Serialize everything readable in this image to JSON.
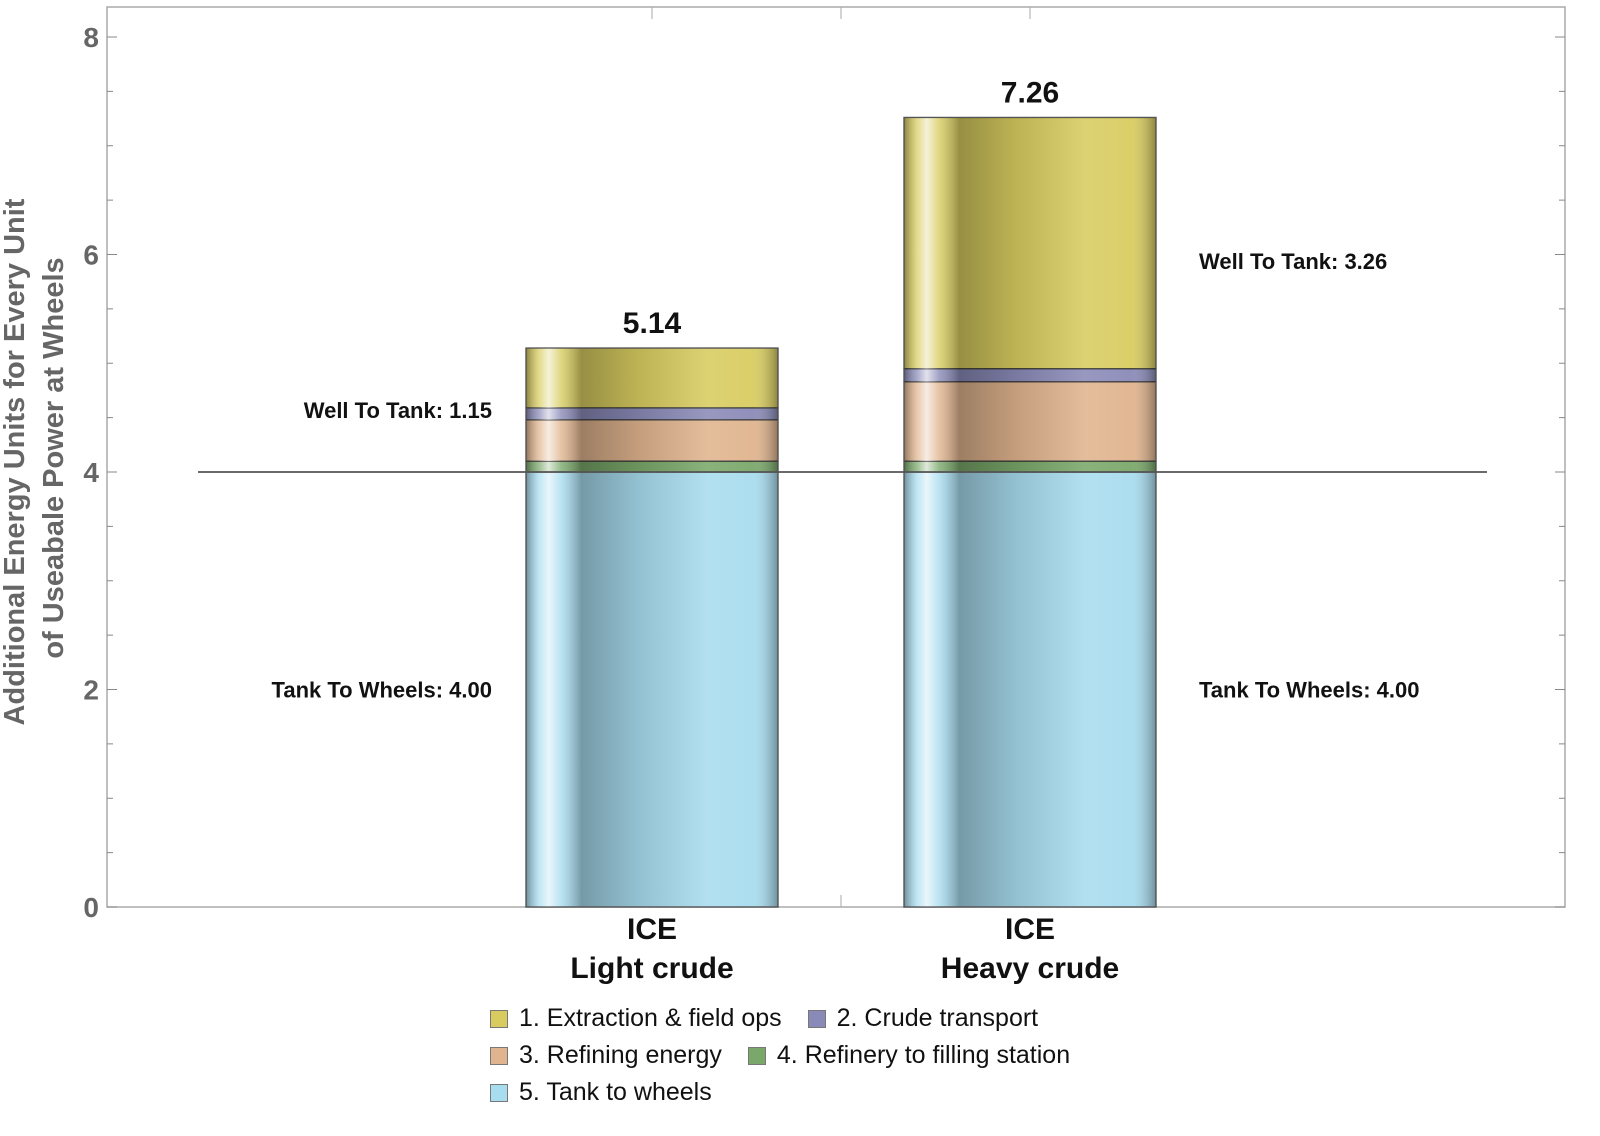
{
  "chart_data": {
    "type": "bar",
    "stacked": true,
    "title": "",
    "xlabel": "",
    "ylabel": "Additional Energy Units for Every Unit of Useable Power at Wheels",
    "ylabel_lines": [
      "Additional Energy Units for Every Unit",
      "of Useabale Power at Wheels"
    ],
    "ylim": [
      0,
      8.2
    ],
    "yticks": [
      0,
      2,
      4,
      6,
      8
    ],
    "ytick_labels": [
      "0",
      "2",
      "4",
      "6",
      "8"
    ],
    "categories": [
      "ICE\nLight crude",
      "ICE\nHeavy crude"
    ],
    "category_lines": [
      [
        "ICE",
        "Light crude"
      ],
      [
        "ICE",
        "Heavy crude"
      ]
    ],
    "series": [
      {
        "name": "5. Tank to wheels",
        "color": "#a8dcef",
        "values": [
          4.0,
          4.0
        ]
      },
      {
        "name": "4. Refinery to filling station",
        "color": "#7aa86a",
        "values": [
          0.1,
          0.1
        ]
      },
      {
        "name": "3. Refining energy",
        "color": "#e0b48e",
        "values": [
          0.38,
          0.73
        ]
      },
      {
        "name": "2. Crude transport",
        "color": "#8a8ab8",
        "values": [
          0.11,
          0.12
        ]
      },
      {
        "name": "1. Extraction & field ops",
        "color": "#d8cc60",
        "values": [
          0.55,
          2.31
        ]
      }
    ],
    "totals": [
      5.14,
      7.26
    ],
    "total_labels": [
      "5.14",
      "7.26"
    ],
    "reference_line": {
      "y": 4.0,
      "color": "#555555"
    },
    "annotations": [
      {
        "text": "Well To Tank: 1.15",
        "category": 0,
        "side": "left",
        "y": 4.57
      },
      {
        "text": "Tank To Wheels: 4.00",
        "category": 0,
        "side": "left",
        "y": 2.0
      },
      {
        "text": "Well To Tank: 3.26",
        "category": 1,
        "side": "right",
        "y": 5.94
      },
      {
        "text": "Tank To Wheels: 4.00",
        "category": 1,
        "side": "right",
        "y": 2.0
      }
    ],
    "legend": {
      "position": "bottom",
      "rows": [
        [
          {
            "label": "1. Extraction & field ops",
            "color": "#d8cc60"
          },
          {
            "label": "2. Crude transport",
            "color": "#8a8ab8"
          }
        ],
        [
          {
            "label": "3. Refining energy",
            "color": "#e0b48e"
          },
          {
            "label": "4. Refinery to filling station",
            "color": "#7aa86a"
          }
        ],
        [
          {
            "label": "5. Tank to wheels",
            "color": "#a8dcef"
          }
        ]
      ]
    },
    "grid": false
  },
  "legend": {
    "items": [
      {
        "label": "1. Extraction & field ops",
        "color": "#d8cc60"
      },
      {
        "label": "2. Crude transport",
        "color": "#8a8ab8"
      },
      {
        "label": "3. Refining energy",
        "color": "#e0b48e"
      },
      {
        "label": "4. Refinery to filling station",
        "color": "#7aa86a"
      },
      {
        "label": "5. Tank to wheels",
        "color": "#a8dcef"
      }
    ]
  }
}
